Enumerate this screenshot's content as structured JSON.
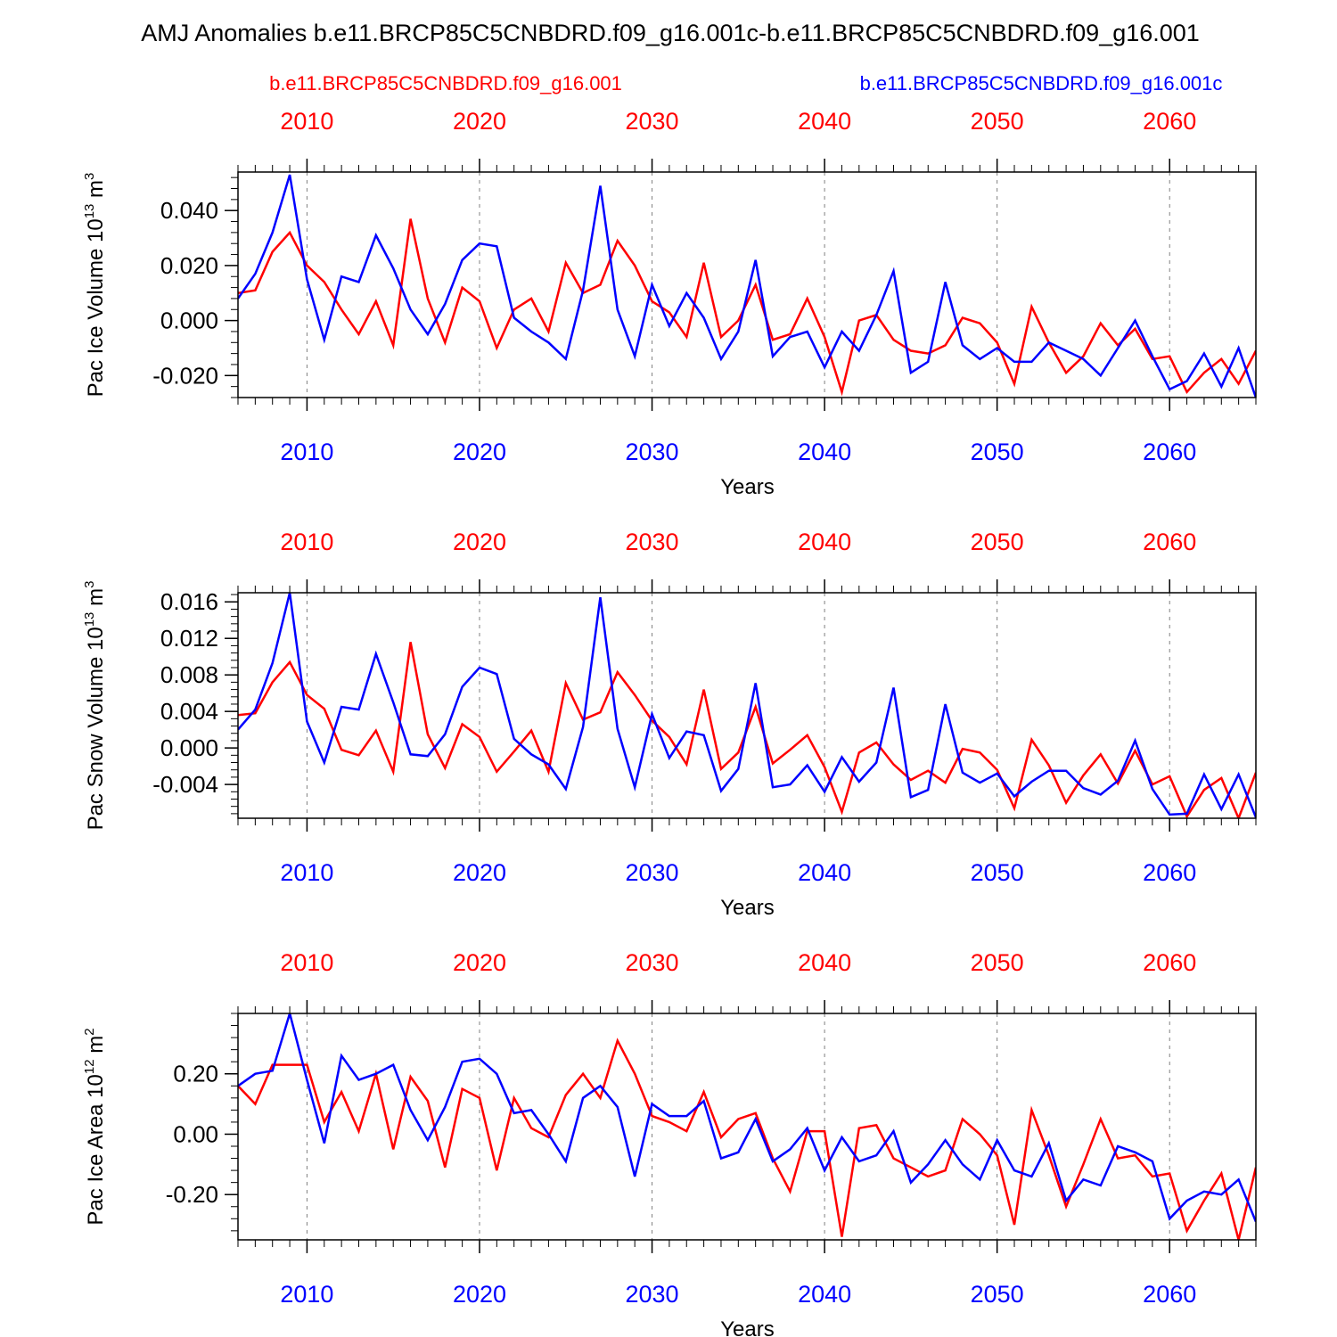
{
  "title": "AMJ Anomalies b.e11.BRCP85C5CNBDRD.f09_g16.001c-b.e11.BRCP85C5CNBDRD.f09_g16.001",
  "legend": {
    "red_label": "b.e11.BRCP85C5CNBDRD.f09_g16.001",
    "blue_label": "b.e11.BRCP85C5CNBDRD.f09_g16.001c"
  },
  "colors": {
    "red": "#ff0000",
    "blue": "#0000ff",
    "axis": "#000000",
    "grid": "#808080"
  },
  "chart_data": [
    {
      "type": "line",
      "ylabel": "Pac Ice Volume 10^13 m^3",
      "ylabel_main": "Pac Ice Volume 10",
      "ylabel_exp": "13",
      "ylabel_unit": "m",
      "ylabel_unit_exp": "3",
      "xlabel": "Years",
      "xlim": [
        2006,
        2065
      ],
      "ylim": [
        -0.028,
        0.054
      ],
      "yticks": [
        -0.02,
        0.0,
        0.02,
        0.04
      ],
      "ytick_labels": [
        "-0.020",
        "0.000",
        "0.020",
        "0.040"
      ],
      "yminor_step": 0.004,
      "xticks": [
        2010,
        2020,
        2030,
        2040,
        2050,
        2060
      ],
      "xtick_labels": [
        "2010",
        "2020",
        "2030",
        "2040",
        "2050",
        "2060"
      ],
      "grid": "vertical dashed at major x ticks",
      "series": [
        {
          "name": "b.e11.BRCP85C5CNBDRD.f09_g16.001",
          "color": "red",
          "values": [
            0.01,
            0.011,
            0.025,
            0.032,
            0.02,
            0.014,
            0.004,
            -0.005,
            0.007,
            -0.009,
            0.037,
            0.008,
            -0.008,
            0.012,
            0.007,
            -0.01,
            0.004,
            0.008,
            -0.004,
            0.021,
            0.01,
            0.013,
            0.029,
            0.02,
            0.007,
            0.003,
            -0.006,
            0.021,
            -0.006,
            0.0,
            0.013,
            -0.007,
            -0.005,
            0.008,
            -0.006,
            -0.026,
            0.0,
            0.002,
            -0.007,
            -0.011,
            -0.012,
            -0.009,
            0.001,
            -0.001,
            -0.008,
            -0.023,
            0.005,
            -0.008,
            -0.019,
            -0.013,
            -0.001,
            -0.009,
            -0.003,
            -0.014,
            -0.013,
            -0.026,
            -0.019,
            -0.014,
            -0.023,
            -0.011
          ]
        },
        {
          "name": "b.e11.BRCP85C5CNBDRD.f09_g16.001c",
          "color": "blue",
          "values": [
            0.008,
            0.017,
            0.032,
            0.053,
            0.015,
            -0.007,
            0.016,
            0.014,
            0.031,
            0.019,
            0.004,
            -0.005,
            0.006,
            0.022,
            0.028,
            0.027,
            0.001,
            -0.004,
            -0.008,
            -0.014,
            0.011,
            0.049,
            0.004,
            -0.013,
            0.013,
            -0.002,
            0.01,
            0.001,
            -0.014,
            -0.004,
            0.022,
            -0.013,
            -0.006,
            -0.004,
            -0.017,
            -0.004,
            -0.011,
            0.002,
            0.018,
            -0.019,
            -0.015,
            0.014,
            -0.009,
            -0.014,
            -0.01,
            -0.015,
            -0.015,
            -0.008,
            -0.011,
            -0.014,
            -0.02,
            -0.01,
            0.0,
            -0.013,
            -0.025,
            -0.022,
            -0.012,
            -0.024,
            -0.01,
            -0.028
          ]
        }
      ]
    },
    {
      "type": "line",
      "ylabel": "Pac Snow Volume 10^13 m^3",
      "ylabel_main": "Pac Snow Volume 10",
      "ylabel_exp": "13",
      "ylabel_unit": "m",
      "ylabel_unit_exp": "3",
      "xlabel": "Years",
      "xlim": [
        2006,
        2065
      ],
      "ylim": [
        -0.0077,
        0.017
      ],
      "yticks": [
        -0.004,
        0.0,
        0.004,
        0.008,
        0.012,
        0.016
      ],
      "ytick_labels": [
        "-0.004",
        "0.000",
        "0.004",
        "0.008",
        "0.012",
        "0.016"
      ],
      "yminor_step": 0.0008,
      "xticks": [
        2010,
        2020,
        2030,
        2040,
        2050,
        2060
      ],
      "xtick_labels": [
        "2010",
        "2020",
        "2030",
        "2040",
        "2050",
        "2060"
      ],
      "grid": "vertical dashed at major x ticks",
      "series": [
        {
          "name": "b.e11.BRCP85C5CNBDRD.f09_g16.001",
          "color": "red",
          "values": [
            0.0036,
            0.0038,
            0.0072,
            0.0094,
            0.0058,
            0.0043,
            -0.0002,
            -0.0008,
            0.0019,
            -0.0026,
            0.0116,
            0.0015,
            -0.0022,
            0.0026,
            0.0012,
            -0.0026,
            -0.0004,
            0.0019,
            -0.0026,
            0.0071,
            0.0031,
            0.0039,
            0.0083,
            0.0058,
            0.003,
            0.0012,
            -0.0018,
            0.0064,
            -0.0023,
            -0.0005,
            0.0045,
            -0.0017,
            -0.0002,
            0.0014,
            -0.0021,
            -0.007,
            -0.0005,
            0.0006,
            -0.0018,
            -0.0035,
            -0.0025,
            -0.0038,
            -0.0001,
            -0.0005,
            -0.0024,
            -0.0066,
            0.0009,
            -0.0019,
            -0.006,
            -0.003,
            -0.0007,
            -0.0039,
            -0.0003,
            -0.004,
            -0.0031,
            -0.0075,
            -0.0046,
            -0.0033,
            -0.0077,
            -0.0027
          ]
        },
        {
          "name": "b.e11.BRCP85C5CNBDRD.f09_g16.001c",
          "color": "blue",
          "values": [
            0.002,
            0.0042,
            0.0093,
            0.017,
            0.0029,
            -0.0016,
            0.0045,
            0.0042,
            0.0103,
            0.005,
            -0.0007,
            -0.0009,
            0.0015,
            0.0067,
            0.0088,
            0.0081,
            0.001,
            -0.0007,
            -0.0018,
            -0.0045,
            0.0023,
            0.0165,
            0.0021,
            -0.0043,
            0.0037,
            -0.0011,
            0.0018,
            0.0014,
            -0.0047,
            -0.0023,
            0.0071,
            -0.0043,
            -0.004,
            -0.0019,
            -0.0048,
            -0.001,
            -0.0037,
            -0.0016,
            0.0066,
            -0.0054,
            -0.0046,
            0.0048,
            -0.0027,
            -0.0038,
            -0.0028,
            -0.0053,
            -0.0037,
            -0.0025,
            -0.0025,
            -0.0044,
            -0.0051,
            -0.0036,
            0.0008,
            -0.0045,
            -0.0073,
            -0.0072,
            -0.0029,
            -0.0067,
            -0.0029,
            -0.0076
          ]
        }
      ]
    },
    {
      "type": "line",
      "ylabel": "Pac Ice Area 10^12 m^2",
      "ylabel_main": "Pac Ice Area 10",
      "ylabel_exp": "12",
      "ylabel_unit": "m",
      "ylabel_unit_exp": "2",
      "xlabel": "Years",
      "xlim": [
        2006,
        2065
      ],
      "ylim": [
        -0.35,
        0.4
      ],
      "yticks": [
        -0.2,
        0.0,
        0.2
      ],
      "ytick_labels": [
        "-0.20",
        "0.00",
        "0.20"
      ],
      "yminor_step": 0.04,
      "xticks": [
        2010,
        2020,
        2030,
        2040,
        2050,
        2060
      ],
      "xtick_labels": [
        "2010",
        "2020",
        "2030",
        "2040",
        "2050",
        "2060"
      ],
      "grid": "vertical dashed at major x ticks",
      "series": [
        {
          "name": "b.e11.BRCP85C5CNBDRD.f09_g16.001",
          "color": "red",
          "values": [
            0.16,
            0.1,
            0.23,
            0.23,
            0.23,
            0.04,
            0.14,
            0.01,
            0.2,
            -0.05,
            0.19,
            0.11,
            -0.11,
            0.15,
            0.12,
            -0.12,
            0.12,
            0.02,
            -0.01,
            0.13,
            0.2,
            0.12,
            0.31,
            0.2,
            0.06,
            0.04,
            0.01,
            0.14,
            -0.01,
            0.05,
            0.07,
            -0.08,
            -0.19,
            0.01,
            0.01,
            -0.34,
            0.02,
            0.03,
            -0.08,
            -0.11,
            -0.14,
            -0.12,
            0.05,
            0.0,
            -0.07,
            -0.3,
            0.08,
            -0.07,
            -0.24,
            -0.1,
            0.05,
            -0.08,
            -0.07,
            -0.14,
            -0.13,
            -0.32,
            -0.22,
            -0.13,
            -0.35,
            -0.11
          ]
        },
        {
          "name": "b.e11.BRCP85C5CNBDRD.f09_g16.001c",
          "color": "blue",
          "values": [
            0.16,
            0.2,
            0.21,
            0.4,
            0.18,
            -0.03,
            0.26,
            0.18,
            0.2,
            0.23,
            0.08,
            -0.02,
            0.09,
            0.24,
            0.25,
            0.2,
            0.07,
            0.08,
            0.0,
            -0.09,
            0.12,
            0.16,
            0.09,
            -0.14,
            0.1,
            0.06,
            0.06,
            0.11,
            -0.08,
            -0.06,
            0.05,
            -0.09,
            -0.05,
            0.02,
            -0.12,
            -0.01,
            -0.09,
            -0.07,
            0.01,
            -0.16,
            -0.1,
            -0.02,
            -0.1,
            -0.15,
            -0.02,
            -0.12,
            -0.14,
            -0.03,
            -0.22,
            -0.15,
            -0.17,
            -0.04,
            -0.06,
            -0.09,
            -0.28,
            -0.22,
            -0.19,
            -0.2,
            -0.15,
            -0.29
          ]
        }
      ]
    }
  ]
}
